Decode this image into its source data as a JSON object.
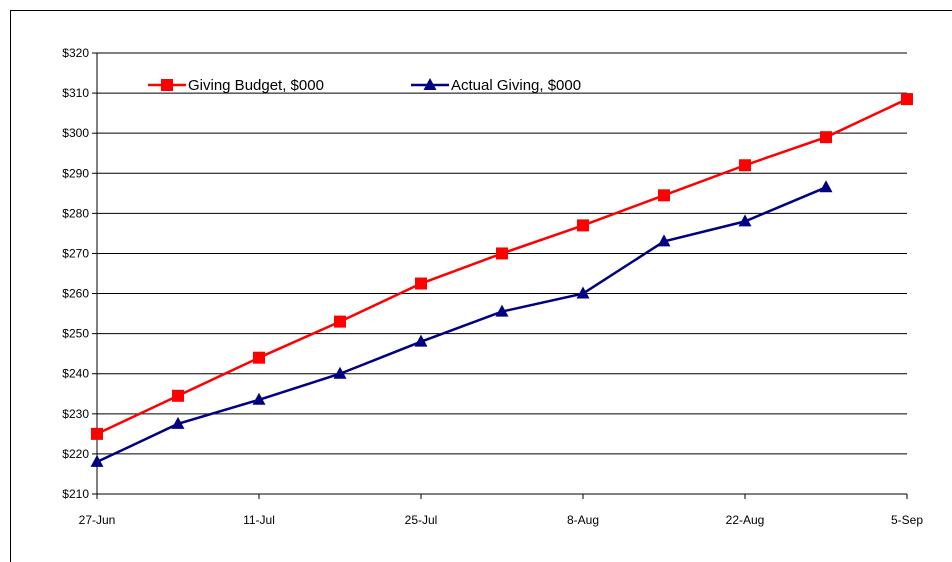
{
  "chart_data": {
    "type": "line",
    "title": "",
    "xlabel": "",
    "ylabel": "",
    "x_ticks": [
      "27-Jun",
      "11-Jul",
      "25-Jul",
      "8-Aug",
      "22-Aug",
      "5-Sep"
    ],
    "x_tick_dates": [
      "2011-06-27",
      "2011-07-11",
      "2011-07-25",
      "2011-08-08",
      "2011-08-22",
      "2011-09-05"
    ],
    "xlim": [
      "2011-06-27",
      "2011-09-05"
    ],
    "y_ticks": [
      "$210",
      "$220",
      "$230",
      "$240",
      "$250",
      "$260",
      "$270",
      "$280",
      "$290",
      "$300",
      "$310",
      "$320"
    ],
    "ylim": [
      210,
      320
    ],
    "grid": "horizontal",
    "legend_position": "top-left",
    "series": [
      {
        "name": "Giving Budget, $000",
        "color": "#ff0000",
        "marker": "square",
        "points": [
          {
            "x": "2011-06-27",
            "y": 225
          },
          {
            "x": "2011-07-04",
            "y": 234.5
          },
          {
            "x": "2011-07-11",
            "y": 244
          },
          {
            "x": "2011-07-18",
            "y": 253
          },
          {
            "x": "2011-07-25",
            "y": 262.5
          },
          {
            "x": "2011-08-01",
            "y": 270
          },
          {
            "x": "2011-08-08",
            "y": 277
          },
          {
            "x": "2011-08-15",
            "y": 284.5
          },
          {
            "x": "2011-08-22",
            "y": 292
          },
          {
            "x": "2011-08-29",
            "y": 299
          },
          {
            "x": "2011-09-05",
            "y": 308.5
          }
        ]
      },
      {
        "name": "Actual Giving, $000",
        "color": "#000080",
        "marker": "triangle",
        "points": [
          {
            "x": "2011-06-27",
            "y": 218
          },
          {
            "x": "2011-07-04",
            "y": 227.5
          },
          {
            "x": "2011-07-11",
            "y": 233.5
          },
          {
            "x": "2011-07-18",
            "y": 240
          },
          {
            "x": "2011-07-25",
            "y": 248
          },
          {
            "x": "2011-08-01",
            "y": 255.5
          },
          {
            "x": "2011-08-08",
            "y": 260
          },
          {
            "x": "2011-08-15",
            "y": 273
          },
          {
            "x": "2011-08-22",
            "y": 278
          },
          {
            "x": "2011-08-29",
            "y": 286.5
          }
        ]
      }
    ]
  }
}
